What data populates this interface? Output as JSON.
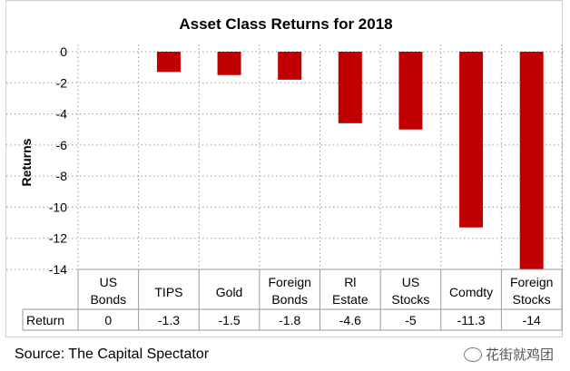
{
  "chart_data": {
    "type": "bar",
    "title": "Asset Class Returns for  2018",
    "ylabel": "Returns",
    "categories": [
      [
        "US",
        "Bonds"
      ],
      [
        "TIPS"
      ],
      [
        "Gold"
      ],
      [
        "Foreign",
        "Bonds"
      ],
      [
        "Rl",
        "Estate"
      ],
      [
        "US",
        "Stocks"
      ],
      [
        "Comdty"
      ],
      [
        "Foreign",
        "Stocks"
      ]
    ],
    "series": [
      {
        "name": "Return",
        "values": [
          0,
          -1.3,
          -1.5,
          -1.8,
          -4.6,
          -5,
          -11.3,
          -14
        ]
      }
    ],
    "value_labels": [
      "0",
      "-1.3",
      "-1.5",
      "-1.8",
      "-4.6",
      "-5",
      "-11.3",
      "-14"
    ],
    "yticks": [
      "0",
      "-2",
      "-4",
      "-6",
      "-8",
      "-10",
      "-12",
      "-14"
    ],
    "ylim": [
      -14,
      0
    ],
    "grid": "dotted",
    "bar_color": "#c00000",
    "legend": "data table row"
  },
  "source": "Source: The Capital Spectator",
  "watermark": "花街就鸡团"
}
